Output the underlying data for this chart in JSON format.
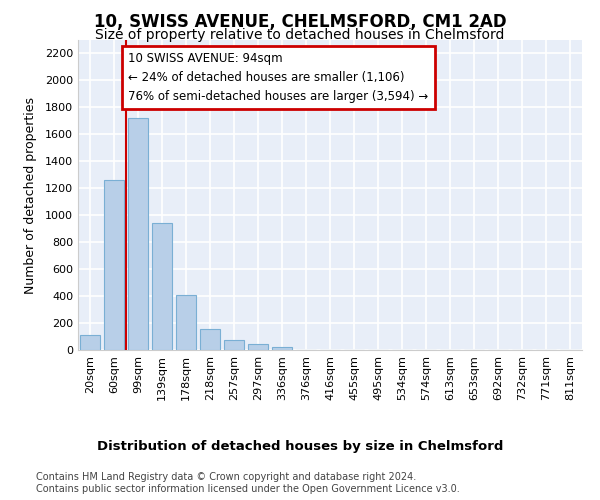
{
  "title": "10, SWISS AVENUE, CHELMSFORD, CM1 2AD",
  "subtitle": "Size of property relative to detached houses in Chelmsford",
  "xlabel_bottom": "Distribution of detached houses by size in Chelmsford",
  "ylabel": "Number of detached properties",
  "categories": [
    "20sqm",
    "60sqm",
    "99sqm",
    "139sqm",
    "178sqm",
    "218sqm",
    "257sqm",
    "297sqm",
    "336sqm",
    "376sqm",
    "416sqm",
    "455sqm",
    "495sqm",
    "534sqm",
    "574sqm",
    "613sqm",
    "653sqm",
    "692sqm",
    "732sqm",
    "771sqm",
    "811sqm"
  ],
  "values": [
    110,
    1260,
    1720,
    940,
    405,
    155,
    75,
    45,
    25,
    0,
    0,
    0,
    0,
    0,
    0,
    0,
    0,
    0,
    0,
    0,
    0
  ],
  "bar_color": "#b8cfe8",
  "bar_edge_color": "#7aafd4",
  "bar_width": 0.85,
  "background_color": "#e8eef8",
  "grid_color": "#c8d4e8",
  "vline_color": "#cc0000",
  "annotation_text": "10 SWISS AVENUE: 94sqm\n← 24% of detached houses are smaller (1,106)\n76% of semi-detached houses are larger (3,594) →",
  "annotation_box_color": "#cc0000",
  "ylim": [
    0,
    2300
  ],
  "yticks": [
    0,
    200,
    400,
    600,
    800,
    1000,
    1200,
    1400,
    1600,
    1800,
    2000,
    2200
  ],
  "footnote": "Contains HM Land Registry data © Crown copyright and database right 2024.\nContains public sector information licensed under the Open Government Licence v3.0.",
  "title_fontsize": 12,
  "subtitle_fontsize": 10,
  "ylabel_fontsize": 9,
  "tick_fontsize": 8,
  "footnote_fontsize": 7
}
